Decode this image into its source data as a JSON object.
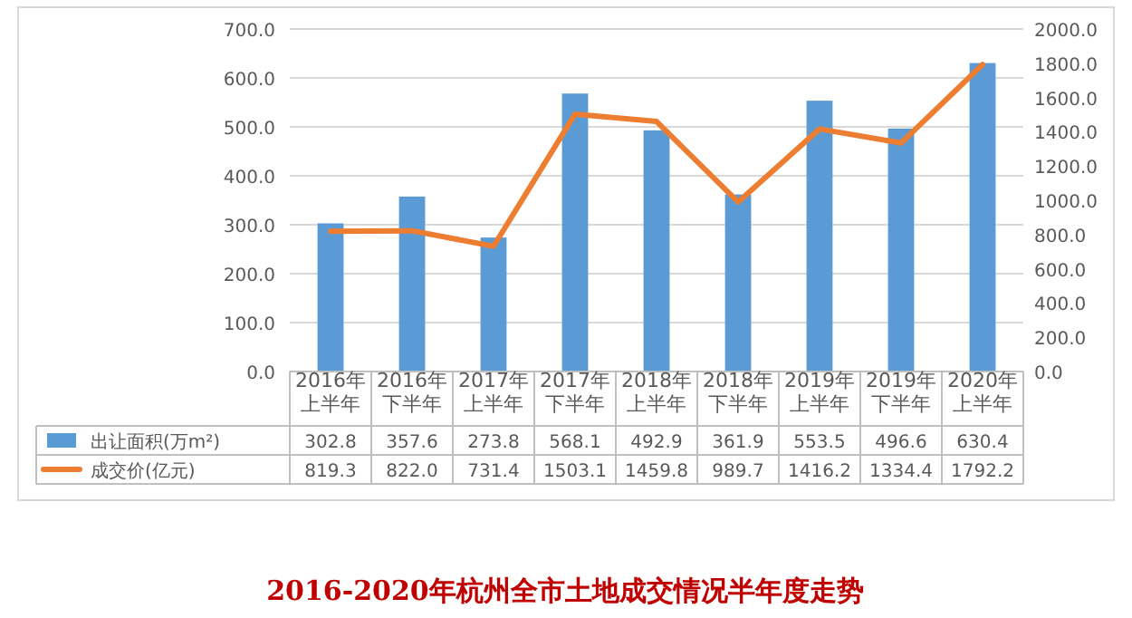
{
  "chart_data": {
    "type": "bar",
    "title": "2016-2020年杭州全市土地成交情况半年度走势",
    "categories": [
      "2016年上半年",
      "2016年下半年",
      "2017年上半年",
      "2017年下半年",
      "2018年上半年",
      "2018年下半年",
      "2019年上半年",
      "2019年下半年",
      "2020年上半年"
    ],
    "series": [
      {
        "name": "出让面积(万m²)",
        "color": "#5b9bd5",
        "values": [
          302.8,
          357.6,
          273.8,
          568.1,
          492.9,
          361.9,
          553.5,
          496.6,
          630.4
        ],
        "value_labels": [
          "302.8",
          "357.6",
          "273.8",
          "568.1",
          "492.9",
          "361.9",
          "553.5",
          "496.6",
          "630.4"
        ]
      },
      {
        "name": "成交价(亿元)",
        "type": "line",
        "axis": "y2",
        "color": "#ed7d31",
        "values": [
          819.3,
          822.0,
          731.4,
          1503.1,
          1459.8,
          989.7,
          1416.2,
          1334.4,
          1792.2
        ],
        "value_labels": [
          "819.3",
          "822.0",
          "731.4",
          "1503.1",
          "1459.8",
          "989.7",
          "1416.2",
          "1334.4",
          "1792.2"
        ]
      }
    ],
    "ylim": [
      0,
      700
    ],
    "yticks": [
      {
        "value": 0,
        "label": "0.0"
      },
      {
        "value": 100,
        "label": "100.0"
      },
      {
        "value": 200,
        "label": "200.0"
      },
      {
        "value": 300,
        "label": "300.0"
      },
      {
        "value": 400,
        "label": "400.0"
      },
      {
        "value": 500,
        "label": "500.0"
      },
      {
        "value": 600,
        "label": "600.0"
      },
      {
        "value": 700,
        "label": "700.0"
      }
    ],
    "y2lim": [
      0,
      2000
    ],
    "y2ticks": [
      {
        "value": 0,
        "label": "0.0"
      },
      {
        "value": 200,
        "label": "200.0"
      },
      {
        "value": 400,
        "label": "400.0"
      },
      {
        "value": 600,
        "label": "600.0"
      },
      {
        "value": 800,
        "label": "800.0"
      },
      {
        "value": 1000,
        "label": "1000.0"
      },
      {
        "value": 1200,
        "label": "1200.0"
      },
      {
        "value": 1400,
        "label": "1400.0"
      },
      {
        "value": 1600,
        "label": "1600.0"
      },
      {
        "value": 1800,
        "label": "1800.0"
      },
      {
        "value": 2000,
        "label": "2000.0"
      }
    ],
    "grid": "y",
    "legend": "bottom"
  }
}
